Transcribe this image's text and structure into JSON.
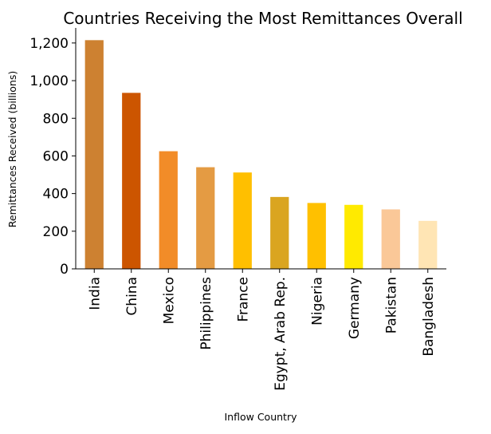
{
  "chart_data": {
    "type": "bar",
    "title": "Countries Receiving the Most Remittances Overall",
    "xlabel": "Inflow Country",
    "ylabel": "Remittances Received (billions)",
    "categories": [
      "India",
      "China",
      "Mexico",
      "Philippines",
      "France",
      "Egypt, Arab Rep.",
      "Nigeria",
      "Germany",
      "Pakistan",
      "Bangladesh"
    ],
    "values": [
      1215,
      935,
      625,
      540,
      512,
      382,
      350,
      340,
      316,
      255
    ],
    "bar_colors": [
      "#CD8131",
      "#CC5500",
      "#F28C28",
      "#E49B43",
      "#FFBF00",
      "#DAA520",
      "#FFC000",
      "#FFEA00",
      "#FAC898",
      "#FFE5B4"
    ],
    "ylim": [
      0,
      1280
    ],
    "yticks": [
      0,
      200,
      400,
      600,
      800,
      1000,
      1200
    ],
    "ytick_labels": [
      "0",
      "200",
      "400",
      "600",
      "800",
      "1,000",
      "1,200"
    ],
    "grid": false,
    "legend": "none",
    "spines": "left-bottom"
  }
}
